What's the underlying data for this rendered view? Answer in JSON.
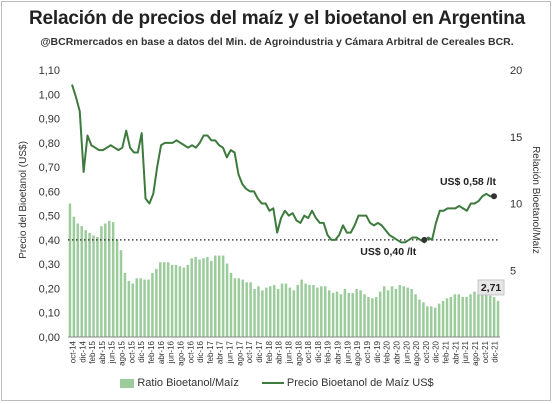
{
  "title": "Relación de precios del maíz y el bioetanol en Argentina",
  "subtitle": "@BCRmercados en base a datos del Min. de Agroindustria y Cámara Arbitral de Cereales BCR.",
  "colors": {
    "bars": "#9ccb9c",
    "line": "#3d7a3d",
    "reference": "#222222"
  },
  "chart_data": {
    "type": "bar+line",
    "ylabel_left": "Precio del Bioetanol (US$)",
    "ylabel_right": "Relación Bioetanol/Maíz",
    "ylim_left": [
      0,
      1.1
    ],
    "ylim_right": [
      0,
      20
    ],
    "yticks_left": [
      "0,00",
      "0,10",
      "0,20",
      "0,30",
      "0,40",
      "0,50",
      "0,60",
      "0,70",
      "0,80",
      "0,90",
      "1,00",
      "1,10"
    ],
    "yticks_right": [
      "5",
      "10",
      "15",
      "20"
    ],
    "x_tick_labels": [
      "oct-14",
      "dic-14",
      "feb-15",
      "abr-15",
      "jun-15",
      "ago-15",
      "oct-15",
      "dic-15",
      "feb-16",
      "abr-16",
      "jun-16",
      "ago-16",
      "oct-16",
      "dic-16",
      "feb-17",
      "abr-17",
      "jun-17",
      "ago-17",
      "oct-17",
      "dic-17",
      "feb-18",
      "abr-18",
      "jun-18",
      "ago-18",
      "oct-18",
      "dic-18",
      "feb-19",
      "abr-19",
      "jun-19",
      "ago-19",
      "oct-19",
      "dic-19",
      "feb-20",
      "abr-20",
      "jun-20",
      "ago-20",
      "oct-20",
      "dic-20",
      "feb-21",
      "abr-21",
      "jun-21",
      "ago-21",
      "oct-21",
      "dic-21"
    ],
    "grid": false,
    "legend_position": "bottom",
    "reference_line_value": 0.4,
    "series": [
      {
        "name": "Ratio Bioetanol/Maíz",
        "type": "bar",
        "axis": "right",
        "values": [
          10.0,
          9.0,
          8.5,
          8.3,
          8.0,
          7.8,
          7.6,
          7.5,
          8.3,
          8.5,
          8.7,
          8.6,
          7.3,
          6.5,
          4.8,
          4.2,
          4.0,
          4.4,
          4.4,
          4.3,
          4.3,
          4.8,
          5.1,
          5.6,
          5.6,
          5.6,
          5.4,
          5.4,
          5.3,
          5.2,
          5.4,
          5.9,
          6.0,
          5.8,
          5.9,
          6.0,
          5.7,
          6.1,
          6.1,
          6.1,
          5.5,
          4.8,
          4.4,
          4.4,
          4.3,
          4.1,
          4.1,
          3.6,
          3.8,
          3.5,
          3.7,
          3.8,
          3.9,
          3.6,
          4.0,
          4.0,
          3.7,
          3.5,
          3.9,
          4.3,
          4.0,
          3.9,
          3.9,
          3.7,
          3.8,
          3.8,
          3.5,
          3.3,
          3.4,
          3.2,
          3.6,
          3.3,
          3.3,
          3.6,
          3.5,
          3.2,
          3.0,
          2.9,
          3.0,
          3.4,
          3.8,
          3.5,
          3.8,
          3.6,
          3.9,
          3.8,
          3.7,
          3.6,
          3.2,
          2.8,
          2.6,
          2.3,
          2.3,
          2.2,
          2.5,
          2.7,
          2.9,
          3.0,
          3.2,
          3.2,
          3.0,
          3.0,
          3.2,
          3.4,
          3.2,
          3.2,
          3.3,
          3.1,
          3.0,
          2.7
        ]
      },
      {
        "name": "Precio Bioetanol de Maíz US$",
        "type": "line",
        "axis": "left",
        "values": [
          1.04,
          0.99,
          0.93,
          0.68,
          0.83,
          0.79,
          0.78,
          0.77,
          0.77,
          0.78,
          0.79,
          0.78,
          0.77,
          0.78,
          0.85,
          0.78,
          0.76,
          0.76,
          0.84,
          0.57,
          0.55,
          0.59,
          0.7,
          0.79,
          0.8,
          0.8,
          0.8,
          0.81,
          0.8,
          0.79,
          0.78,
          0.79,
          0.78,
          0.8,
          0.83,
          0.83,
          0.81,
          0.81,
          0.79,
          0.78,
          0.74,
          0.77,
          0.76,
          0.67,
          0.63,
          0.61,
          0.6,
          0.6,
          0.57,
          0.55,
          0.55,
          0.52,
          0.53,
          0.43,
          0.49,
          0.52,
          0.5,
          0.51,
          0.48,
          0.47,
          0.5,
          0.49,
          0.52,
          0.49,
          0.47,
          0.47,
          0.42,
          0.4,
          0.4,
          0.42,
          0.46,
          0.43,
          0.43,
          0.46,
          0.5,
          0.5,
          0.5,
          0.47,
          0.46,
          0.47,
          0.46,
          0.44,
          0.42,
          0.41,
          0.4,
          0.39,
          0.39,
          0.4,
          0.41,
          0.41,
          0.4,
          0.39,
          0.41,
          0.4,
          0.47,
          0.52,
          0.52,
          0.53,
          0.53,
          0.53,
          0.54,
          0.53,
          0.52,
          0.55,
          0.55,
          0.56,
          0.58,
          0.59,
          0.58,
          0.58
        ]
      }
    ],
    "annotations": [
      {
        "text": "US$ 0,58 /lt",
        "series": "Precio Bioetanol de Maíz US$",
        "point": "last"
      },
      {
        "text": "US$ 0,40 /lt",
        "series": "Precio Bioetanol de Maíz US$",
        "value": 0.4
      },
      {
        "text": "2,71",
        "series": "Ratio Bioetanol/Maíz",
        "point": "last"
      }
    ]
  }
}
